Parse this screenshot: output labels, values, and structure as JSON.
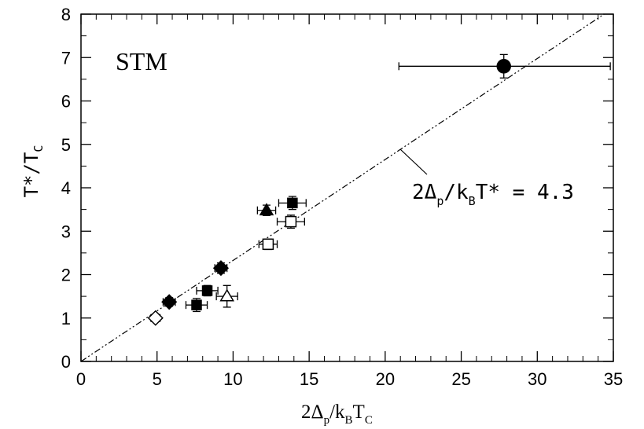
{
  "chart_data": {
    "type": "scatter",
    "title": "",
    "xlabel": "2Δp/kBTC",
    "ylabel": "T*/TC",
    "xlim": [
      0,
      35
    ],
    "ylim": [
      0,
      8
    ],
    "xticks": [
      "0",
      "5",
      "10",
      "15",
      "20",
      "25",
      "30",
      "35"
    ],
    "yticks": [
      "0",
      "1",
      "2",
      "3",
      "4",
      "5",
      "6",
      "7",
      "8"
    ],
    "grid": false,
    "annotation": "STM",
    "fit_line": {
      "label": "2Δp/kBT* = 4.3",
      "slope": 0.2326,
      "intercept": 0
    },
    "points": [
      {
        "marker": "circle-filled",
        "x": 27.8,
        "y": 6.8,
        "xerr": [
          6.9,
          7.0
        ],
        "yerr": 0.27
      },
      {
        "marker": "square-filled",
        "x": 13.9,
        "y": 3.65,
        "xerr": [
          0.9,
          0.9
        ],
        "yerr": 0.15
      },
      {
        "marker": "triangle-filled",
        "x": 12.2,
        "y": 3.48,
        "xerr": [
          0.6,
          0.6
        ],
        "yerr": 0.12
      },
      {
        "marker": "square-open",
        "x": 13.8,
        "y": 3.22,
        "xerr": [
          0.9,
          0.9
        ],
        "yerr": 0.15
      },
      {
        "marker": "square-open",
        "x": 12.3,
        "y": 2.7,
        "xerr": [
          0.6,
          0.6
        ],
        "yerr": 0.12
      },
      {
        "marker": "diamond-filled",
        "x": 9.2,
        "y": 2.15,
        "xerr": [
          0.4,
          0.4
        ],
        "yerr": 0.12
      },
      {
        "marker": "square-filled",
        "x": 8.3,
        "y": 1.63,
        "xerr": [
          0.7,
          0.7
        ],
        "yerr": 0.12
      },
      {
        "marker": "triangle-open",
        "x": 9.6,
        "y": 1.5,
        "xerr": [
          0.7,
          0.7
        ],
        "yerr": 0.25
      },
      {
        "marker": "diamond-filled",
        "x": 5.8,
        "y": 1.37,
        "xerr": [
          0.4,
          0.4
        ],
        "yerr": 0.1
      },
      {
        "marker": "square-filled",
        "x": 7.6,
        "y": 1.3,
        "xerr": [
          0.7,
          0.7
        ],
        "yerr": 0.15
      },
      {
        "marker": "diamond-open",
        "x": 4.9,
        "y": 1.0,
        "xerr": [
          0.3,
          0.3
        ],
        "yerr": 0.08
      }
    ]
  }
}
